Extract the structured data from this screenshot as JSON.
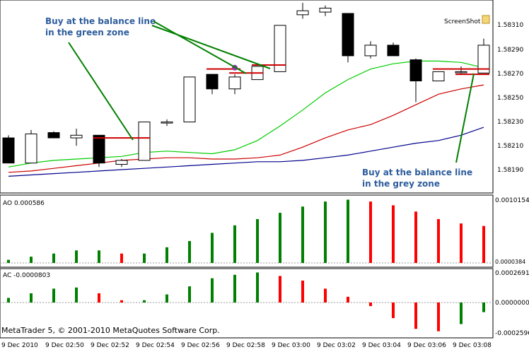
{
  "main_panel": {
    "price_ticks": [
      "1.58310",
      "1.58290",
      "1.58270",
      "1.58250",
      "1.58230",
      "1.58210",
      "1.58190"
    ],
    "screenshot_label": "ScreenShot",
    "annotation_green": [
      "Buy at the balance line",
      "in the green zone"
    ],
    "annotation_grey": [
      "Buy at the balance line",
      "in the grey zone"
    ]
  },
  "ao_panel": {
    "label": "AO 0.000586",
    "ticks": [
      "0.0010154",
      "0.0000384"
    ]
  },
  "ac_panel": {
    "label": "AC -0.0000803",
    "ticks": [
      "0.0002691",
      "0.0000000",
      "-0.0002596"
    ]
  },
  "copyright": "MetaTrader 5, © 2001-2010 MetaQuotes Software Corp.",
  "time_labels": [
    "9 Dec 2010",
    "9 Dec 02:50",
    "9 Dec 02:52",
    "9 Dec 02:54",
    "9 Dec 02:56",
    "9 Dec 02:58",
    "9 Dec 03:00",
    "9 Dec 03:02",
    "9 Dec 03:04",
    "9 Dec 03:06",
    "9 Dec 03:08"
  ],
  "colors": {
    "up_bar": "#008000",
    "down_bar": "#ff0000",
    "jaw": "#00008b",
    "teeth": "#cc0000",
    "lips": "#00cc00",
    "annotation_text": "#2e5d9c",
    "annotation_line": "#008000"
  },
  "chart_data": {
    "type": "candlestick",
    "candles": [
      {
        "o": 1.58218,
        "h": 1.5822,
        "l": 1.58199,
        "c": 1.58199
      },
      {
        "o": 1.58199,
        "h": 1.58224,
        "l": 1.58199,
        "c": 1.58221
      },
      {
        "o": 1.58222,
        "h": 1.58223,
        "l": 1.58218,
        "c": 1.58218
      },
      {
        "o": 1.58218,
        "h": 1.58225,
        "l": 1.58212,
        "c": 1.5822
      },
      {
        "o": 1.5822,
        "h": 1.5822,
        "l": 1.58196,
        "c": 1.58199
      },
      {
        "o": 1.58198,
        "h": 1.58202,
        "l": 1.58196,
        "c": 1.58201
      },
      {
        "o": 1.58201,
        "h": 1.5823,
        "l": 1.58201,
        "c": 1.5823
      },
      {
        "o": 1.5823,
        "h": 1.58232,
        "l": 1.58227,
        "c": 1.5823
      },
      {
        "o": 1.5823,
        "h": 1.58264,
        "l": 1.5823,
        "c": 1.58264
      },
      {
        "o": 1.58266,
        "h": 1.58266,
        "l": 1.58251,
        "c": 1.58255
      },
      {
        "o": 1.58255,
        "h": 1.58266,
        "l": 1.58251,
        "c": 1.58264
      },
      {
        "o": 1.58262,
        "h": 1.58272,
        "l": 1.58262,
        "c": 1.58272
      },
      {
        "o": 1.58268,
        "h": 1.58303,
        "l": 1.58268,
        "c": 1.58303
      },
      {
        "o": 1.58311,
        "h": 1.5832,
        "l": 1.58308,
        "c": 1.58314
      },
      {
        "o": 1.58313,
        "h": 1.58318,
        "l": 1.5831,
        "c": 1.58316
      },
      {
        "o": 1.58312,
        "h": 1.58312,
        "l": 1.58275,
        "c": 1.5828
      },
      {
        "o": 1.5828,
        "h": 1.58291,
        "l": 1.58278,
        "c": 1.58288
      },
      {
        "o": 1.58288,
        "h": 1.5829,
        "l": 1.5828,
        "c": 1.5828
      },
      {
        "o": 1.58277,
        "h": 1.58278,
        "l": 1.58245,
        "c": 1.58261
      },
      {
        "o": 1.58261,
        "h": 1.58268,
        "l": 1.58261,
        "c": 1.58268
      },
      {
        "o": 1.58268,
        "h": 1.58272,
        "l": 1.58266,
        "c": 1.58268
      },
      {
        "o": 1.58267,
        "h": 1.58293,
        "l": 1.58267,
        "c": 1.58288
      }
    ],
    "jaw": [
      1.58189,
      1.5819,
      1.58191,
      1.58192,
      1.58193,
      1.58194,
      1.58195,
      1.58196,
      1.58197,
      1.58198,
      1.58199,
      1.582,
      1.582,
      1.58201,
      1.58203,
      1.58205,
      1.58208,
      1.58211,
      1.58214,
      1.58216,
      1.5822,
      1.58226
    ],
    "teeth": [
      1.58192,
      1.58193,
      1.58195,
      1.58197,
      1.58199,
      1.58201,
      1.58202,
      1.58203,
      1.58203,
      1.58202,
      1.58202,
      1.58203,
      1.58205,
      1.58211,
      1.58218,
      1.58224,
      1.58228,
      1.58235,
      1.58243,
      1.58251,
      1.58255,
      1.58258
    ],
    "lips": [
      1.58196,
      1.58199,
      1.58201,
      1.58202,
      1.58203,
      1.58204,
      1.58207,
      1.58208,
      1.58207,
      1.58206,
      1.58209,
      1.58216,
      1.58227,
      1.58239,
      1.58252,
      1.58262,
      1.5827,
      1.58274,
      1.58276,
      1.58276,
      1.58275,
      1.58271
    ],
    "ao": [
      5e-05,
      0.0001,
      0.00015,
      0.0002,
      0.0002,
      0.00015,
      0.00015,
      0.00025,
      0.00035,
      0.00048,
      0.0006,
      0.0007,
      0.0008,
      0.0009,
      0.00098,
      0.00101,
      0.00098,
      0.00092,
      0.00082,
      0.0007,
      0.00063,
      0.00059
    ],
    "ac": [
      4e-05,
      8e-05,
      0.00012,
      0.00013,
      8e-05,
      2e-05,
      2e-05,
      7e-05,
      0.00014,
      0.00021,
      0.00024,
      0.00026,
      0.00023,
      0.00019,
      0.00012,
      5e-05,
      -3e-05,
      -0.00013,
      -0.00022,
      -0.00024,
      -0.00018,
      -8e-05
    ],
    "annotations": [
      {
        "name": "green-zone-buy",
        "price": 1.58218,
        "from_index": 4,
        "to_index": 6
      },
      {
        "name": "balance-2",
        "price": 1.5827,
        "from_index": 9,
        "to_index": 10
      },
      {
        "name": "balance-3",
        "price": 1.58267,
        "from_index": 10,
        "to_index": 11
      },
      {
        "name": "balance-4",
        "price": 1.58273,
        "from_index": 11,
        "to_index": 12
      },
      {
        "name": "grey-zone-buy",
        "price": 1.5827,
        "from_index": 19,
        "to_index": 21
      },
      {
        "name": "balance-6",
        "price": 1.58266,
        "from_index": 20,
        "to_index": 21
      }
    ],
    "signal_point": {
      "index": 10,
      "price": 1.58271
    },
    "y_range": [
      1.58178,
      1.5832
    ],
    "ao_range": [
      0.0,
      0.0010154
    ],
    "ac_range": [
      -0.0002596,
      0.0002691
    ]
  }
}
